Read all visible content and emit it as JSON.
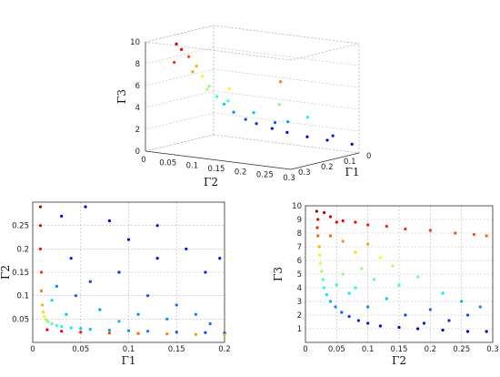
{
  "chart_data": [
    {
      "type": "scatter",
      "projection": "3d",
      "title": "",
      "xlabel": "Γ1",
      "ylabel": "Γ2",
      "zlabel": "Γ3",
      "xlim": [
        0,
        0.3
      ],
      "ylim": [
        0,
        0.3
      ],
      "zlim": [
        0,
        10
      ],
      "x_ticks": [
        "0.3",
        "0.2",
        "0.1",
        "0"
      ],
      "y_ticks": [
        "0",
        "0.05",
        "0.1",
        "0.15",
        "0.2",
        "0.25",
        "0.3"
      ],
      "z_ticks": [
        "0",
        "2",
        "4",
        "6",
        "8",
        "10"
      ],
      "colormap": "jet",
      "color_by": "Γ3",
      "grid": true,
      "points": [
        [
          0.01,
          0.29,
          0.8
        ],
        [
          0.012,
          0.24,
          0.9
        ],
        [
          0.015,
          0.2,
          1.0
        ],
        [
          0.018,
          0.16,
          1.2
        ],
        [
          0.02,
          0.13,
          1.4
        ],
        [
          0.025,
          0.1,
          1.7
        ],
        [
          0.03,
          0.08,
          2.0
        ],
        [
          0.04,
          0.06,
          2.6
        ],
        [
          0.05,
          0.045,
          3.3
        ],
        [
          0.06,
          0.035,
          4.0
        ],
        [
          0.08,
          0.028,
          5.0
        ],
        [
          0.1,
          0.024,
          6.0
        ],
        [
          0.12,
          0.021,
          7.0
        ],
        [
          0.15,
          0.019,
          8.0
        ],
        [
          0.18,
          0.018,
          8.8
        ],
        [
          0.2,
          0.017,
          9.4
        ],
        [
          0.05,
          0.15,
          2.2
        ],
        [
          0.08,
          0.12,
          3.1
        ],
        [
          0.1,
          0.2,
          2.8
        ],
        [
          0.15,
          0.1,
          4.4
        ],
        [
          0.2,
          0.08,
          5.6
        ],
        [
          0.22,
          0.06,
          7.2
        ],
        [
          0.12,
          0.25,
          3.6
        ],
        [
          0.18,
          0.22,
          4.9
        ],
        [
          0.25,
          0.15,
          6.3
        ],
        [
          0.28,
          0.05,
          8.3
        ],
        [
          0.03,
          0.26,
          1.5
        ],
        [
          0.26,
          0.26,
          7.6
        ]
      ]
    },
    {
      "type": "scatter",
      "title": "",
      "xlabel": "Γ1",
      "ylabel": "Γ2",
      "xlim": [
        0,
        0.2
      ],
      "ylim": [
        0,
        0.3
      ],
      "x_ticks": [
        "0",
        "0.05",
        "0.1",
        "0.15",
        "0.2"
      ],
      "y_ticks": [
        "0.05",
        "0.1",
        "0.15",
        "0.2",
        "0.25"
      ],
      "colormap": "jet",
      "color_by": "Γ3",
      "grid": true,
      "points": [
        [
          0.008,
          0.29,
          9.5
        ],
        [
          0.008,
          0.25,
          9.0
        ],
        [
          0.008,
          0.2,
          8.6
        ],
        [
          0.009,
          0.15,
          8.2
        ],
        [
          0.009,
          0.11,
          7.6
        ],
        [
          0.01,
          0.08,
          7.0
        ],
        [
          0.011,
          0.065,
          6.6
        ],
        [
          0.012,
          0.055,
          6.0
        ],
        [
          0.014,
          0.048,
          5.4
        ],
        [
          0.016,
          0.044,
          5.0
        ],
        [
          0.02,
          0.04,
          4.6
        ],
        [
          0.025,
          0.036,
          4.2
        ],
        [
          0.03,
          0.034,
          3.9
        ],
        [
          0.04,
          0.031,
          3.6
        ],
        [
          0.05,
          0.03,
          3.3
        ],
        [
          0.06,
          0.028,
          3.1
        ],
        [
          0.08,
          0.026,
          2.8
        ],
        [
          0.1,
          0.025,
          2.6
        ],
        [
          0.12,
          0.024,
          2.4
        ],
        [
          0.15,
          0.022,
          2.2
        ],
        [
          0.18,
          0.021,
          2.0
        ],
        [
          0.2,
          0.02,
          1.9
        ],
        [
          0.015,
          0.027,
          8.8
        ],
        [
          0.03,
          0.024,
          8.9
        ],
        [
          0.05,
          0.022,
          8.5
        ],
        [
          0.08,
          0.02,
          8.0
        ],
        [
          0.11,
          0.019,
          7.8
        ],
        [
          0.14,
          0.018,
          7.5
        ],
        [
          0.17,
          0.017,
          7.3
        ],
        [
          0.2,
          0.016,
          7.0
        ],
        [
          0.03,
          0.27,
          1.1
        ],
        [
          0.055,
          0.29,
          1.0
        ],
        [
          0.08,
          0.26,
          1.2
        ],
        [
          0.1,
          0.22,
          1.3
        ],
        [
          0.13,
          0.25,
          1.1
        ],
        [
          0.16,
          0.2,
          1.4
        ],
        [
          0.18,
          0.15,
          1.6
        ],
        [
          0.195,
          0.18,
          1.5
        ],
        [
          0.04,
          0.18,
          1.6
        ],
        [
          0.06,
          0.13,
          1.9
        ],
        [
          0.09,
          0.15,
          1.7
        ],
        [
          0.12,
          0.1,
          2.1
        ],
        [
          0.15,
          0.08,
          2.3
        ],
        [
          0.17,
          0.06,
          2.5
        ],
        [
          0.07,
          0.07,
          2.8
        ],
        [
          0.11,
          0.06,
          2.6
        ],
        [
          0.14,
          0.05,
          2.7
        ],
        [
          0.045,
          0.1,
          2.3
        ],
        [
          0.025,
          0.12,
          2.6
        ],
        [
          0.02,
          0.09,
          3.3
        ],
        [
          0.035,
          0.06,
          3.2
        ],
        [
          0.09,
          0.045,
          3.0
        ],
        [
          0.185,
          0.04,
          2.4
        ],
        [
          0.13,
          0.18,
          1.4
        ]
      ]
    },
    {
      "type": "scatter",
      "title": "",
      "xlabel": "Γ2",
      "ylabel": "Γ3",
      "xlim": [
        0,
        0.3
      ],
      "ylim": [
        0,
        10
      ],
      "x_ticks": [
        "0",
        "0.05",
        "0.1",
        "0.15",
        "0.2",
        "0.25",
        "0.3"
      ],
      "y_ticks": [
        "1",
        "2",
        "3",
        "4",
        "5",
        "6",
        "7",
        "8",
        "9",
        "10"
      ],
      "colormap": "jet",
      "color_by": "Γ3",
      "grid": true,
      "points": [
        [
          0.018,
          9.6
        ],
        [
          0.02,
          9.0
        ],
        [
          0.019,
          8.4
        ],
        [
          0.02,
          7.8
        ],
        [
          0.022,
          7.0
        ],
        [
          0.023,
          6.4
        ],
        [
          0.024,
          5.8
        ],
        [
          0.026,
          5.2
        ],
        [
          0.028,
          4.6
        ],
        [
          0.03,
          4.0
        ],
        [
          0.034,
          3.5
        ],
        [
          0.04,
          3.0
        ],
        [
          0.048,
          2.6
        ],
        [
          0.058,
          2.2
        ],
        [
          0.07,
          1.9
        ],
        [
          0.085,
          1.6
        ],
        [
          0.1,
          1.4
        ],
        [
          0.12,
          1.2
        ],
        [
          0.15,
          1.1
        ],
        [
          0.18,
          1.0
        ],
        [
          0.22,
          0.9
        ],
        [
          0.26,
          0.8
        ],
        [
          0.29,
          0.8
        ],
        [
          0.03,
          9.5
        ],
        [
          0.04,
          9.2
        ],
        [
          0.05,
          8.8
        ],
        [
          0.06,
          8.9
        ],
        [
          0.08,
          8.8
        ],
        [
          0.1,
          8.6
        ],
        [
          0.13,
          8.5
        ],
        [
          0.16,
          8.3
        ],
        [
          0.2,
          8.2
        ],
        [
          0.24,
          8.0
        ],
        [
          0.27,
          7.9
        ],
        [
          0.29,
          7.8
        ],
        [
          0.04,
          7.8
        ],
        [
          0.06,
          7.4
        ],
        [
          0.08,
          6.6
        ],
        [
          0.1,
          7.2
        ],
        [
          0.12,
          6.2
        ],
        [
          0.09,
          5.4
        ],
        [
          0.14,
          5.6
        ],
        [
          0.06,
          5.0
        ],
        [
          0.11,
          4.6
        ],
        [
          0.15,
          4.2
        ],
        [
          0.18,
          4.8
        ],
        [
          0.22,
          3.6
        ],
        [
          0.25,
          3.0
        ],
        [
          0.28,
          2.6
        ],
        [
          0.2,
          2.4
        ],
        [
          0.16,
          2.0
        ],
        [
          0.23,
          1.6
        ],
        [
          0.13,
          3.2
        ],
        [
          0.07,
          3.6
        ],
        [
          0.1,
          2.6
        ],
        [
          0.26,
          2.0
        ],
        [
          0.19,
          1.4
        ],
        [
          0.05,
          4.2
        ],
        [
          0.08,
          4.0
        ]
      ]
    }
  ]
}
